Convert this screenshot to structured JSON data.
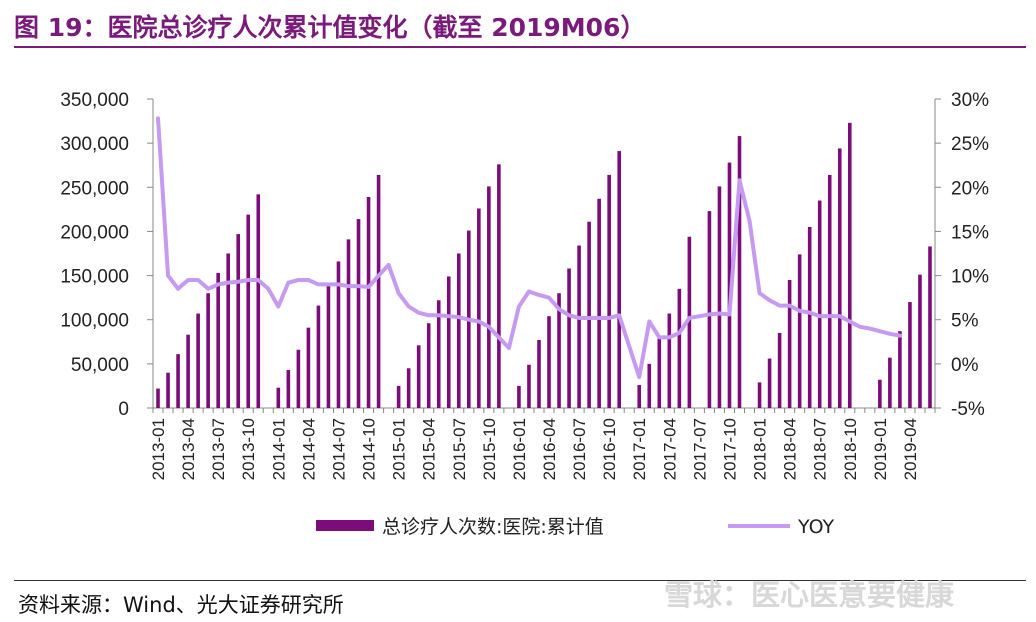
{
  "header": {
    "title": "图 19：医院总诊疗人次累计值变化（截至 2019M06）"
  },
  "footer": {
    "source": "资料来源：Wind、光大证券研究所",
    "watermark": "雪球：医心医意要健康"
  },
  "colors": {
    "bar": "#7b0c79",
    "line": "#c59af0",
    "title": "#7a1a7a"
  },
  "chart_data": {
    "type": "bar",
    "title": "",
    "x": [
      "2013-01",
      "2013-02",
      "2013-03",
      "2013-04",
      "2013-05",
      "2013-06",
      "2013-07",
      "2013-08",
      "2013-09",
      "2013-10",
      "2013-11",
      "2013-12",
      "2014-01",
      "2014-02",
      "2014-03",
      "2014-04",
      "2014-05",
      "2014-06",
      "2014-07",
      "2014-08",
      "2014-09",
      "2014-10",
      "2014-11",
      "2014-12",
      "2015-01",
      "2015-02",
      "2015-03",
      "2015-04",
      "2015-05",
      "2015-06",
      "2015-07",
      "2015-08",
      "2015-09",
      "2015-10",
      "2015-11",
      "2015-12",
      "2016-01",
      "2016-02",
      "2016-03",
      "2016-04",
      "2016-05",
      "2016-06",
      "2016-07",
      "2016-08",
      "2016-09",
      "2016-10",
      "2016-11",
      "2016-12",
      "2017-01",
      "2017-02",
      "2017-03",
      "2017-04",
      "2017-05",
      "2017-06",
      "2017-07",
      "2017-08",
      "2017-09",
      "2017-10",
      "2017-11",
      "2017-12",
      "2018-01",
      "2018-02",
      "2018-03",
      "2018-04",
      "2018-05",
      "2018-06",
      "2018-07",
      "2018-08",
      "2018-09",
      "2018-10",
      "2018-11",
      "2018-12",
      "2019-01",
      "2019-02",
      "2019-03",
      "2019-04",
      "2019-05",
      "2019-06"
    ],
    "x_tick_labels": [
      "2013-01",
      "2013-04",
      "2013-07",
      "2013-10",
      "2014-01",
      "2014-04",
      "2014-07",
      "2014-10",
      "2015-01",
      "2015-04",
      "2015-07",
      "2015-10",
      "2016-01",
      "2016-04",
      "2016-07",
      "2016-10",
      "2017-01",
      "2017-04",
      "2017-07",
      "2017-10",
      "2018-01",
      "2018-04",
      "2018-07",
      "2018-10",
      "2019-01",
      "2019-04"
    ],
    "series": [
      {
        "name": "总诊疗人次数:医院:累计值",
        "type": "bar",
        "axis": "left",
        "values": [
          22000,
          40000,
          61000,
          83000,
          107000,
          130000,
          153000,
          175000,
          197000,
          219000,
          242000,
          null,
          23000,
          43000,
          66000,
          91000,
          116000,
          141000,
          166000,
          191000,
          214000,
          239000,
          264000,
          null,
          25000,
          45000,
          71000,
          96000,
          122000,
          149000,
          175000,
          201000,
          226000,
          251000,
          276000,
          null,
          25000,
          49000,
          77000,
          104000,
          130000,
          158000,
          184000,
          211000,
          237000,
          264000,
          291000,
          null,
          26000,
          50000,
          79000,
          107000,
          135000,
          194000,
          null,
          223000,
          251000,
          278000,
          308000,
          null,
          29000,
          56000,
          85000,
          145000,
          174000,
          205000,
          235000,
          264000,
          294000,
          323000,
          null,
          null,
          32000,
          57000,
          87000,
          120000,
          151000,
          183000
        ]
      },
      {
        "name": "YOY",
        "type": "line",
        "axis": "right",
        "values": [
          0.278,
          0.1,
          0.085,
          0.095,
          0.095,
          0.085,
          0.09,
          0.092,
          0.093,
          0.095,
          0.095,
          0.085,
          0.065,
          0.092,
          0.095,
          0.095,
          0.09,
          0.09,
          0.09,
          0.088,
          0.088,
          0.087,
          0.1,
          0.112,
          0.08,
          0.065,
          0.058,
          0.055,
          0.055,
          0.054,
          0.053,
          0.05,
          0.048,
          0.042,
          0.03,
          0.018,
          0.065,
          0.082,
          0.078,
          0.075,
          0.062,
          0.055,
          0.052,
          0.052,
          0.052,
          0.052,
          0.055,
          0.02,
          -0.015,
          0.048,
          0.03,
          0.03,
          0.035,
          0.052,
          0.054,
          0.056,
          0.057,
          0.056,
          0.208,
          0.162,
          0.08,
          0.072,
          0.066,
          0.066,
          0.06,
          0.058,
          0.054,
          0.054,
          0.054,
          0.048,
          0.042,
          0.04,
          0.037,
          0.034,
          0.032,
          null,
          null,
          null
        ]
      }
    ],
    "left_axis": {
      "ylim": [
        0,
        350000
      ],
      "ticks": [
        0,
        50000,
        100000,
        150000,
        200000,
        250000,
        300000,
        350000
      ],
      "tick_labels": [
        "0",
        "50,000",
        "100,000",
        "150,000",
        "200,000",
        "250,000",
        "300,000",
        "350,000"
      ]
    },
    "right_axis": {
      "ylim": [
        -0.05,
        0.3
      ],
      "ticks": [
        -0.05,
        0,
        0.05,
        0.1,
        0.15,
        0.2,
        0.25,
        0.3
      ],
      "tick_labels": [
        "-5%",
        "0%",
        "5%",
        "10%",
        "15%",
        "20%",
        "25%",
        "30%"
      ]
    },
    "legend": {
      "position": "bottom",
      "entries": [
        "总诊疗人次数:医院:累计值",
        "YOY"
      ]
    },
    "grid": false
  }
}
